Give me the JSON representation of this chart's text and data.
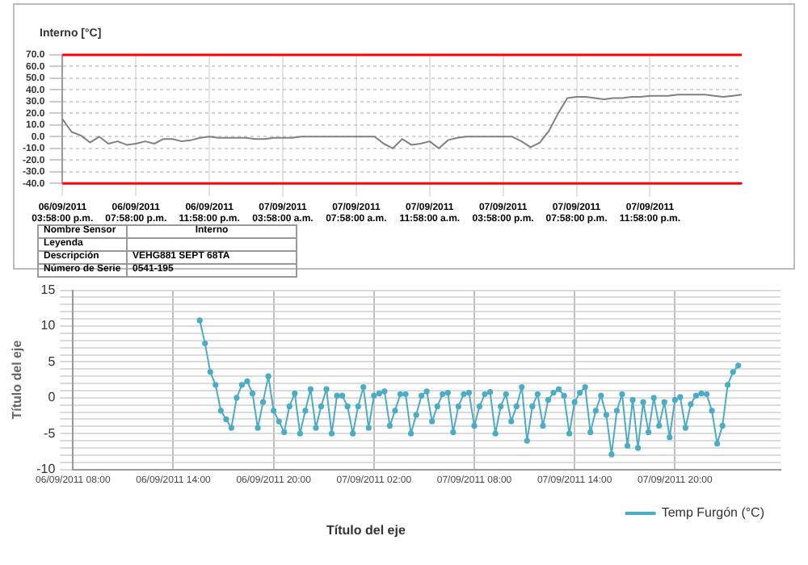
{
  "chart_data": [
    {
      "type": "line",
      "legend": "top left",
      "grid": true,
      "categories": [
        "06/09/2011 03:58:00 p.m.",
        null,
        null,
        null,
        null,
        null,
        null,
        null,
        "06/09/2011 07:58:00 p.m.",
        null,
        null,
        null,
        null,
        null,
        null,
        null,
        "06/09/2011 11:58:00 p.m.",
        null,
        null,
        null,
        null,
        null,
        null,
        null,
        "07/09/2011 03:58:00 a.m.",
        null,
        null,
        null,
        null,
        null,
        null,
        null,
        "07/09/2011 07:58:00 a.m.",
        null,
        null,
        null,
        null,
        null,
        null,
        null,
        "07/09/2011 11:58:00 a.m.",
        null,
        null,
        null,
        null,
        null,
        null,
        null,
        "07/09/2011 03:58:00 p.m.",
        null,
        null,
        null,
        null,
        null,
        null,
        null,
        "07/09/2011 07:58:00 p.m.",
        null,
        null,
        null,
        null,
        null,
        null,
        null,
        "07/09/2011 11:58:00 p.m.",
        null,
        null,
        null,
        null,
        null,
        null,
        null,
        null,
        null,
        null
      ],
      "series": [
        {
          "name": "Interno [°C]",
          "color": "#808080",
          "values": [
            15,
            4,
            1,
            -5,
            0,
            -6,
            -4,
            -7,
            -6,
            -4,
            -6,
            -2,
            -2,
            -4,
            -3,
            -1,
            0,
            -1,
            -1,
            -1,
            -1,
            -2,
            -2,
            -1,
            -1,
            -1,
            0,
            0,
            0,
            0,
            0,
            0,
            0,
            0,
            0,
            -6,
            -10,
            -2,
            -7,
            -6,
            -4,
            -10,
            -3,
            -1,
            0,
            0,
            0,
            0,
            0,
            0,
            -4,
            -9,
            -5,
            5,
            20,
            33,
            34,
            34,
            33,
            32,
            33,
            33,
            34,
            34,
            35,
            35,
            35,
            36,
            36,
            36,
            36,
            35,
            34,
            35,
            36
          ]
        }
      ],
      "ylim": [
        -40,
        70
      ],
      "yticks": [
        {
          "value": -40,
          "label": "-40.0"
        },
        {
          "value": -30,
          "label": "-30.0"
        },
        {
          "value": -20,
          "label": "-20.0"
        },
        {
          "value": -10,
          "label": "-10.0"
        },
        {
          "value": 0,
          "label": "0.0"
        },
        {
          "value": 10,
          "label": "10.0"
        },
        {
          "value": 20,
          "label": "20.0"
        },
        {
          "value": 30,
          "label": "30.0"
        },
        {
          "value": 40,
          "label": "40.0"
        },
        {
          "value": 50,
          "label": "50.0"
        },
        {
          "value": 60,
          "label": "60.0"
        },
        {
          "value": 70,
          "label": "70.0"
        }
      ],
      "ref_lines": [
        {
          "axis": "y",
          "value": 70,
          "color": "#ff0000"
        },
        {
          "axis": "y",
          "value": -40,
          "color": "#ff0000"
        }
      ],
      "annotations": [
        "Nombre Sensor",
        "Interno",
        "Leyenda",
        "Descripción",
        "VEHG881 SEPT 68TA",
        "Número de Serie",
        "0541-195"
      ]
    },
    {
      "type": "line",
      "legend": "bottom right",
      "grid": true,
      "marker": "circle",
      "xlabel": "Título del eje",
      "ylabel": "Título del eje",
      "categories": [
        "06/09/2011 08:00",
        null,
        null,
        null,
        null,
        null,
        null,
        null,
        null,
        null,
        null,
        null,
        null,
        null,
        null,
        null,
        null,
        null,
        null,
        "06/09/2011 14:00",
        null,
        null,
        null,
        null,
        null,
        null,
        null,
        null,
        null,
        null,
        null,
        null,
        null,
        null,
        null,
        null,
        null,
        null,
        "06/09/2011 20:00",
        null,
        null,
        null,
        null,
        null,
        null,
        null,
        null,
        null,
        null,
        null,
        null,
        null,
        null,
        null,
        null,
        null,
        null,
        "07/09/2011 02:00",
        null,
        null,
        null,
        null,
        null,
        null,
        null,
        null,
        null,
        null,
        null,
        null,
        null,
        null,
        null,
        null,
        null,
        null,
        "07/09/2011 08:00",
        null,
        null,
        null,
        null,
        null,
        null,
        null,
        null,
        null,
        null,
        null,
        null,
        null,
        null,
        null,
        null,
        null,
        null,
        "07/09/2011 14:00",
        null,
        null,
        null,
        null,
        null,
        null,
        null,
        null,
        null,
        null,
        null,
        null,
        null,
        null,
        null,
        null,
        null,
        null,
        "07/09/2011 20:00",
        null,
        null,
        null,
        null,
        null,
        null,
        null,
        null,
        null,
        null,
        null,
        null,
        null,
        null,
        null,
        null,
        null,
        null,
        null,
        null
      ],
      "series": [
        {
          "name": "Temp Furgón (°C)",
          "color": "#4bacc6",
          "values": [
            null,
            null,
            null,
            null,
            null,
            null,
            null,
            null,
            null,
            null,
            null,
            null,
            null,
            null,
            null,
            null,
            null,
            null,
            null,
            null,
            null,
            null,
            null,
            null,
            10.8,
            7.6,
            3.6,
            1.8,
            -1.8,
            -3.0,
            -4.2,
            0,
            1.8,
            2.3,
            0.6,
            -4.2,
            -0.6,
            3.0,
            -1.8,
            -3.3,
            -4.8,
            -1.2,
            0.6,
            -5,
            -1.8,
            1.2,
            -4.2,
            -1.2,
            1.2,
            -5,
            0.3,
            0.3,
            -1.2,
            -5,
            -1.2,
            1.5,
            -4.2,
            0.3,
            0.6,
            0.9,
            -3.9,
            -1.8,
            0.5,
            0.5,
            -5,
            -2.4,
            0.3,
            0.9,
            -3.3,
            -1.2,
            0.5,
            0.7,
            -4.8,
            -1.2,
            0.5,
            0.7,
            -3.9,
            -1.2,
            0.5,
            0.8,
            -5,
            -1.2,
            0.5,
            -3.3,
            -1.2,
            1.5,
            -6,
            -1.2,
            0.5,
            -3.9,
            -0.3,
            0.7,
            1.2,
            0.3,
            -5,
            -0.6,
            0.7,
            1.5,
            -4.8,
            -1.8,
            0.3,
            -2.4,
            -7.9,
            -1.8,
            0.5,
            -6.7,
            -0.3,
            -7,
            -0.6,
            -4.8,
            0,
            -3.9,
            -0.6,
            -5.5,
            -0.3,
            0.1,
            -4.2,
            -0.9,
            0.3,
            0.6,
            0.5,
            -1.8,
            -6.4,
            -3.9,
            1.8,
            3.6,
            4.5,
            null,
            null,
            null,
            null,
            null,
            null,
            null,
            null
          ]
        }
      ],
      "ylim": [
        -10,
        15
      ],
      "yticks": [
        -10,
        {
          "value": -9,
          "label": null
        },
        {
          "value": -8,
          "label": null
        },
        {
          "value": -7,
          "label": null
        },
        {
          "value": -6,
          "label": null
        },
        -5,
        {
          "value": -4,
          "label": null
        },
        {
          "value": -3,
          "label": null
        },
        {
          "value": -2,
          "label": null
        },
        {
          "value": -1,
          "label": null
        },
        0,
        {
          "value": 1,
          "label": null
        },
        {
          "value": 2,
          "label": null
        },
        {
          "value": 3,
          "label": null
        },
        {
          "value": 4,
          "label": null
        },
        5,
        {
          "value": 6,
          "label": null
        },
        {
          "value": 7,
          "label": null
        },
        {
          "value": 8,
          "label": null
        },
        {
          "value": 9,
          "label": null
        },
        10,
        {
          "value": 11,
          "label": null
        },
        {
          "value": 12,
          "label": null
        },
        {
          "value": 13,
          "label": null
        },
        {
          "value": 14,
          "label": null
        },
        15
      ]
    }
  ]
}
